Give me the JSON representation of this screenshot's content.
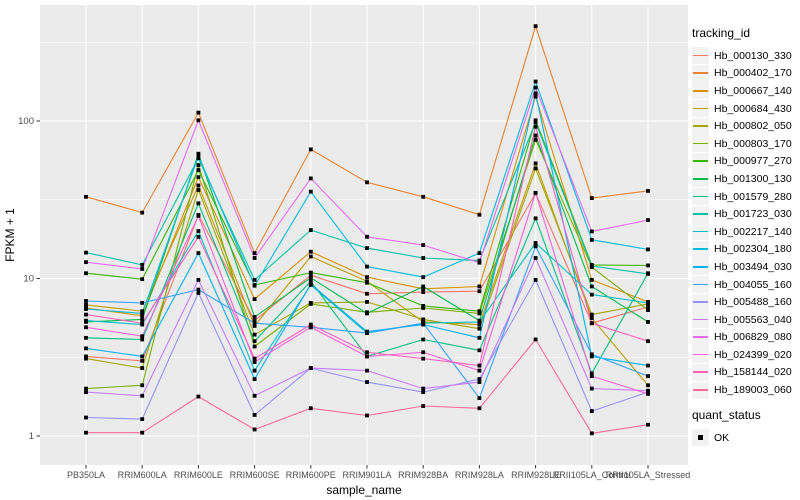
{
  "chart_data": {
    "type": "line",
    "xlabel": "sample_name",
    "ylabel": "FPKM + 1",
    "y_scale": "log10",
    "ylim": [
      1,
      550
    ],
    "y_ticks": [
      {
        "value": 1,
        "label": "1"
      },
      {
        "value": 10,
        "label": "10"
      },
      {
        "value": 100,
        "label": "100"
      }
    ],
    "y_minor_ticks": [
      3.162,
      31.62,
      316.2
    ],
    "grid": "on",
    "marker_shape": "square",
    "x_categories": [
      "PB350LA",
      "RRIM600LA",
      "RRIM600LE",
      "RRIM600SE",
      "RRIM600PE",
      "RRIM901LA",
      "RRIM928BA",
      "RRIM928LA",
      "RRIM928LE",
      "RRII105LA_Control",
      "RRII105LA_Stressed"
    ],
    "series": [
      {
        "tracking_id": "Hb_000130_330",
        "color": "#F8766D",
        "values": [
          3.2,
          3.0,
          25.3,
          5.4,
          10.5,
          8.0,
          8.2,
          8.3,
          34.8,
          5.2,
          6.6
        ]
      },
      {
        "tracking_id": "Hb_000402_170",
        "color": "#EA8331",
        "values": [
          33,
          26.2,
          113,
          14.5,
          66,
          40.8,
          33,
          25.4,
          400,
          32.4,
          36
        ]
      },
      {
        "tracking_id": "Hb_000667_140",
        "color": "#D89000",
        "values": [
          6.5,
          5.8,
          44,
          7.4,
          14.8,
          10.2,
          8.6,
          8.9,
          143,
          9.8,
          7.1
        ]
      },
      {
        "tracking_id": "Hb_000684_430",
        "color": "#C09B00",
        "values": [
          6.8,
          6.2,
          39,
          5.0,
          13.8,
          9.6,
          5.3,
          5.1,
          53.8,
          5.6,
          2.1
        ]
      },
      {
        "tracking_id": "Hb_000802_050",
        "color": "#A3A500",
        "values": [
          3.1,
          2.7,
          36.5,
          4.4,
          7.0,
          7.1,
          5.5,
          4.8,
          50,
          5.9,
          6.9
        ]
      },
      {
        "tracking_id": "Hb_000803_170",
        "color": "#7CAE00",
        "values": [
          2.0,
          2.1,
          52.5,
          3.7,
          6.9,
          6.1,
          6.5,
          6.0,
          76,
          11.8,
          6.3
        ]
      },
      {
        "tracking_id": "Hb_000977_270",
        "color": "#39B600",
        "values": [
          10.8,
          9.9,
          48.8,
          9.1,
          10.9,
          9.4,
          6.7,
          6.2,
          101,
          12.2,
          12.1
        ]
      },
      {
        "tracking_id": "Hb_001300_130",
        "color": "#00BB4E",
        "values": [
          5.3,
          5.5,
          62,
          5.7,
          10.1,
          6.0,
          8.9,
          5.4,
          81,
          8.9,
          5.3
        ]
      },
      {
        "tracking_id": "Hb_001579_280",
        "color": "#00BF7D",
        "values": [
          4.2,
          4.1,
          30,
          4.0,
          9.6,
          3.2,
          4.1,
          3.5,
          24.1,
          2.5,
          10.8
        ]
      },
      {
        "tracking_id": "Hb_001723_030",
        "color": "#00C1A3",
        "values": [
          14.6,
          12.2,
          58,
          9.8,
          20.3,
          15.6,
          13.5,
          13.0,
          98,
          12.0,
          10.7
        ]
      },
      {
        "tracking_id": "Hb_002217_140",
        "color": "#00BFC4",
        "values": [
          5.4,
          5.1,
          20,
          2.6,
          9.1,
          4.5,
          5.2,
          5.3,
          16.8,
          7.9,
          7.0
        ]
      },
      {
        "tracking_id": "Hb_002304_180",
        "color": "#00BAE0",
        "values": [
          6.4,
          6.0,
          60,
          9.0,
          35.6,
          11.9,
          10.2,
          14.5,
          178,
          17.6,
          15.3
        ]
      },
      {
        "tracking_id": "Hb_003494_030",
        "color": "#00B0F6",
        "values": [
          3.6,
          3.2,
          14.5,
          2.3,
          9.2,
          4.6,
          5.1,
          4.2,
          150,
          3.2,
          2.8
        ]
      },
      {
        "tracking_id": "Hb_004055_160",
        "color": "#35A2FF",
        "values": [
          7.2,
          7.0,
          8.5,
          5.2,
          4.9,
          4.5,
          5.2,
          1.74,
          16.0,
          3.3,
          2.4
        ]
      },
      {
        "tracking_id": "Hb_005488_160",
        "color": "#9590FF",
        "values": [
          1.31,
          1.28,
          8.1,
          1.36,
          2.7,
          2.2,
          1.9,
          2.3,
          9.8,
          1.44,
          1.9
        ]
      },
      {
        "tracking_id": "Hb_005563_040",
        "color": "#C77CFF",
        "values": [
          1.9,
          1.8,
          9.8,
          1.8,
          2.7,
          2.6,
          2.0,
          2.2,
          13.5,
          2.0,
          1.94
        ]
      },
      {
        "tracking_id": "Hb_006829_080",
        "color": "#E76BF3",
        "values": [
          12.7,
          11.5,
          101,
          13.5,
          43.2,
          18.4,
          16.3,
          12.6,
          163,
          19.9,
          23.5
        ]
      },
      {
        "tracking_id": "Hb_024399_020",
        "color": "#FA62DB",
        "values": [
          4.9,
          4.3,
          25,
          2.95,
          4.9,
          3.2,
          3.4,
          2.6,
          35,
          2.4,
          1.85
        ]
      },
      {
        "tracking_id": "Hb_158144_020",
        "color": "#FF62BC",
        "values": [
          5.9,
          5.2,
          18.4,
          3.1,
          5.1,
          3.4,
          3.1,
          2.8,
          92,
          5.2,
          4.0
        ]
      },
      {
        "tracking_id": "Hb_189003_060",
        "color": "#FF6A98",
        "values": [
          1.05,
          1.05,
          1.78,
          1.1,
          1.5,
          1.35,
          1.55,
          1.5,
          4.1,
          1.04,
          1.18
        ]
      }
    ],
    "legend": {
      "title": "tracking_id",
      "quant_title": "quant_status",
      "quant_items": [
        "OK"
      ]
    },
    "colors": {
      "panel_bg": "#EBEBEB",
      "gridline": "#FFFFFF",
      "axis_text": "#4D4D4D",
      "tick_mark": "#333333",
      "marker": "#000000",
      "legend_key_bg": "#F2F2F2",
      "title_text": "#000000"
    }
  }
}
